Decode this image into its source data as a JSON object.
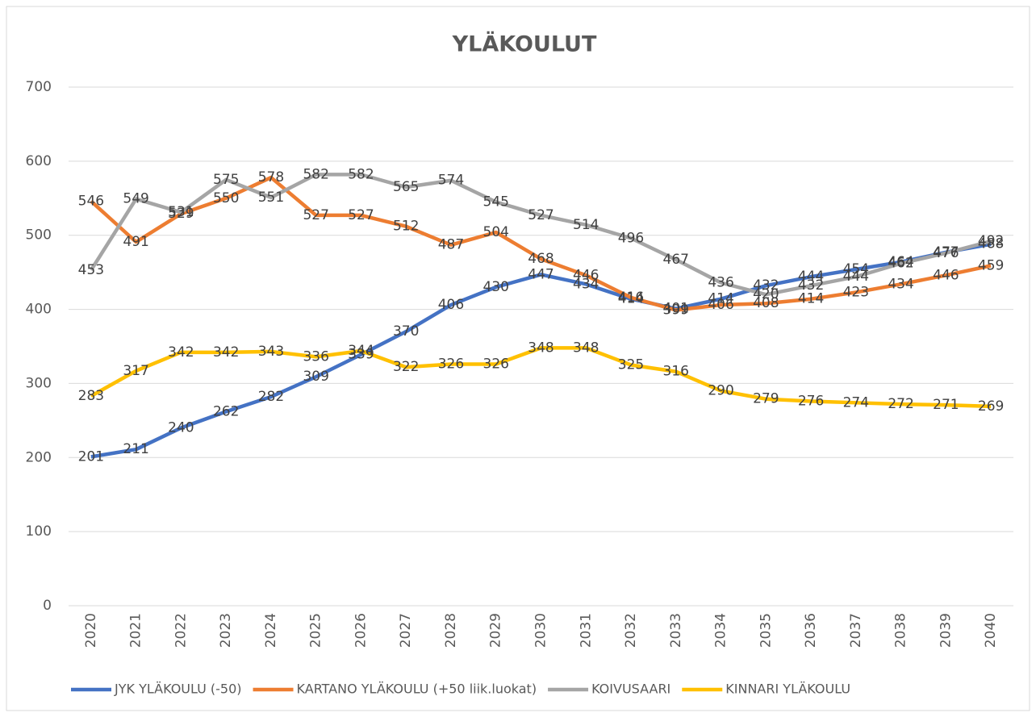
{
  "chart_data": {
    "type": "line",
    "title": "YLÄKOULUT",
    "categories": [
      "2020",
      "2021",
      "2022",
      "2023",
      "2024",
      "2025",
      "2026",
      "2027",
      "2028",
      "2029",
      "2030",
      "2031",
      "2032",
      "2033",
      "2034",
      "2035",
      "2036",
      "2037",
      "2038",
      "2039",
      "2040"
    ],
    "series": [
      {
        "name": "JYK YLÄKOULU (-50)",
        "color": "#4472c4",
        "values": [
          201,
          211,
          240,
          262,
          282,
          309,
          339,
          370,
          406,
          430,
          447,
          434,
          414,
          401,
          414,
          432,
          444,
          454,
          464,
          477,
          488
        ]
      },
      {
        "name": "KARTANO YLÄKOULU (+50 liik.luokat)",
        "color": "#ed7d31",
        "values": [
          546,
          491,
          529,
          550,
          578,
          527,
          527,
          512,
          487,
          504,
          468,
          446,
          416,
          399,
          406,
          408,
          414,
          423,
          434,
          446,
          459
        ]
      },
      {
        "name": "KOIVUSAARI",
        "color": "#a5a5a5",
        "values": [
          453,
          549,
          531,
          575,
          551,
          582,
          582,
          565,
          574,
          545,
          527,
          514,
          496,
          467,
          436,
          420,
          432,
          444,
          462,
          476,
          492
        ]
      },
      {
        "name": "KINNARI YLÄKOULU",
        "color": "#ffc000",
        "values": [
          283,
          317,
          342,
          342,
          343,
          336,
          344,
          322,
          326,
          326,
          348,
          348,
          325,
          316,
          290,
          279,
          276,
          274,
          272,
          271,
          269
        ]
      }
    ],
    "ylim": [
      0,
      700
    ],
    "yticks": [
      0,
      100,
      200,
      300,
      400,
      500,
      600,
      700
    ],
    "grid": true,
    "legend": "bottom"
  }
}
